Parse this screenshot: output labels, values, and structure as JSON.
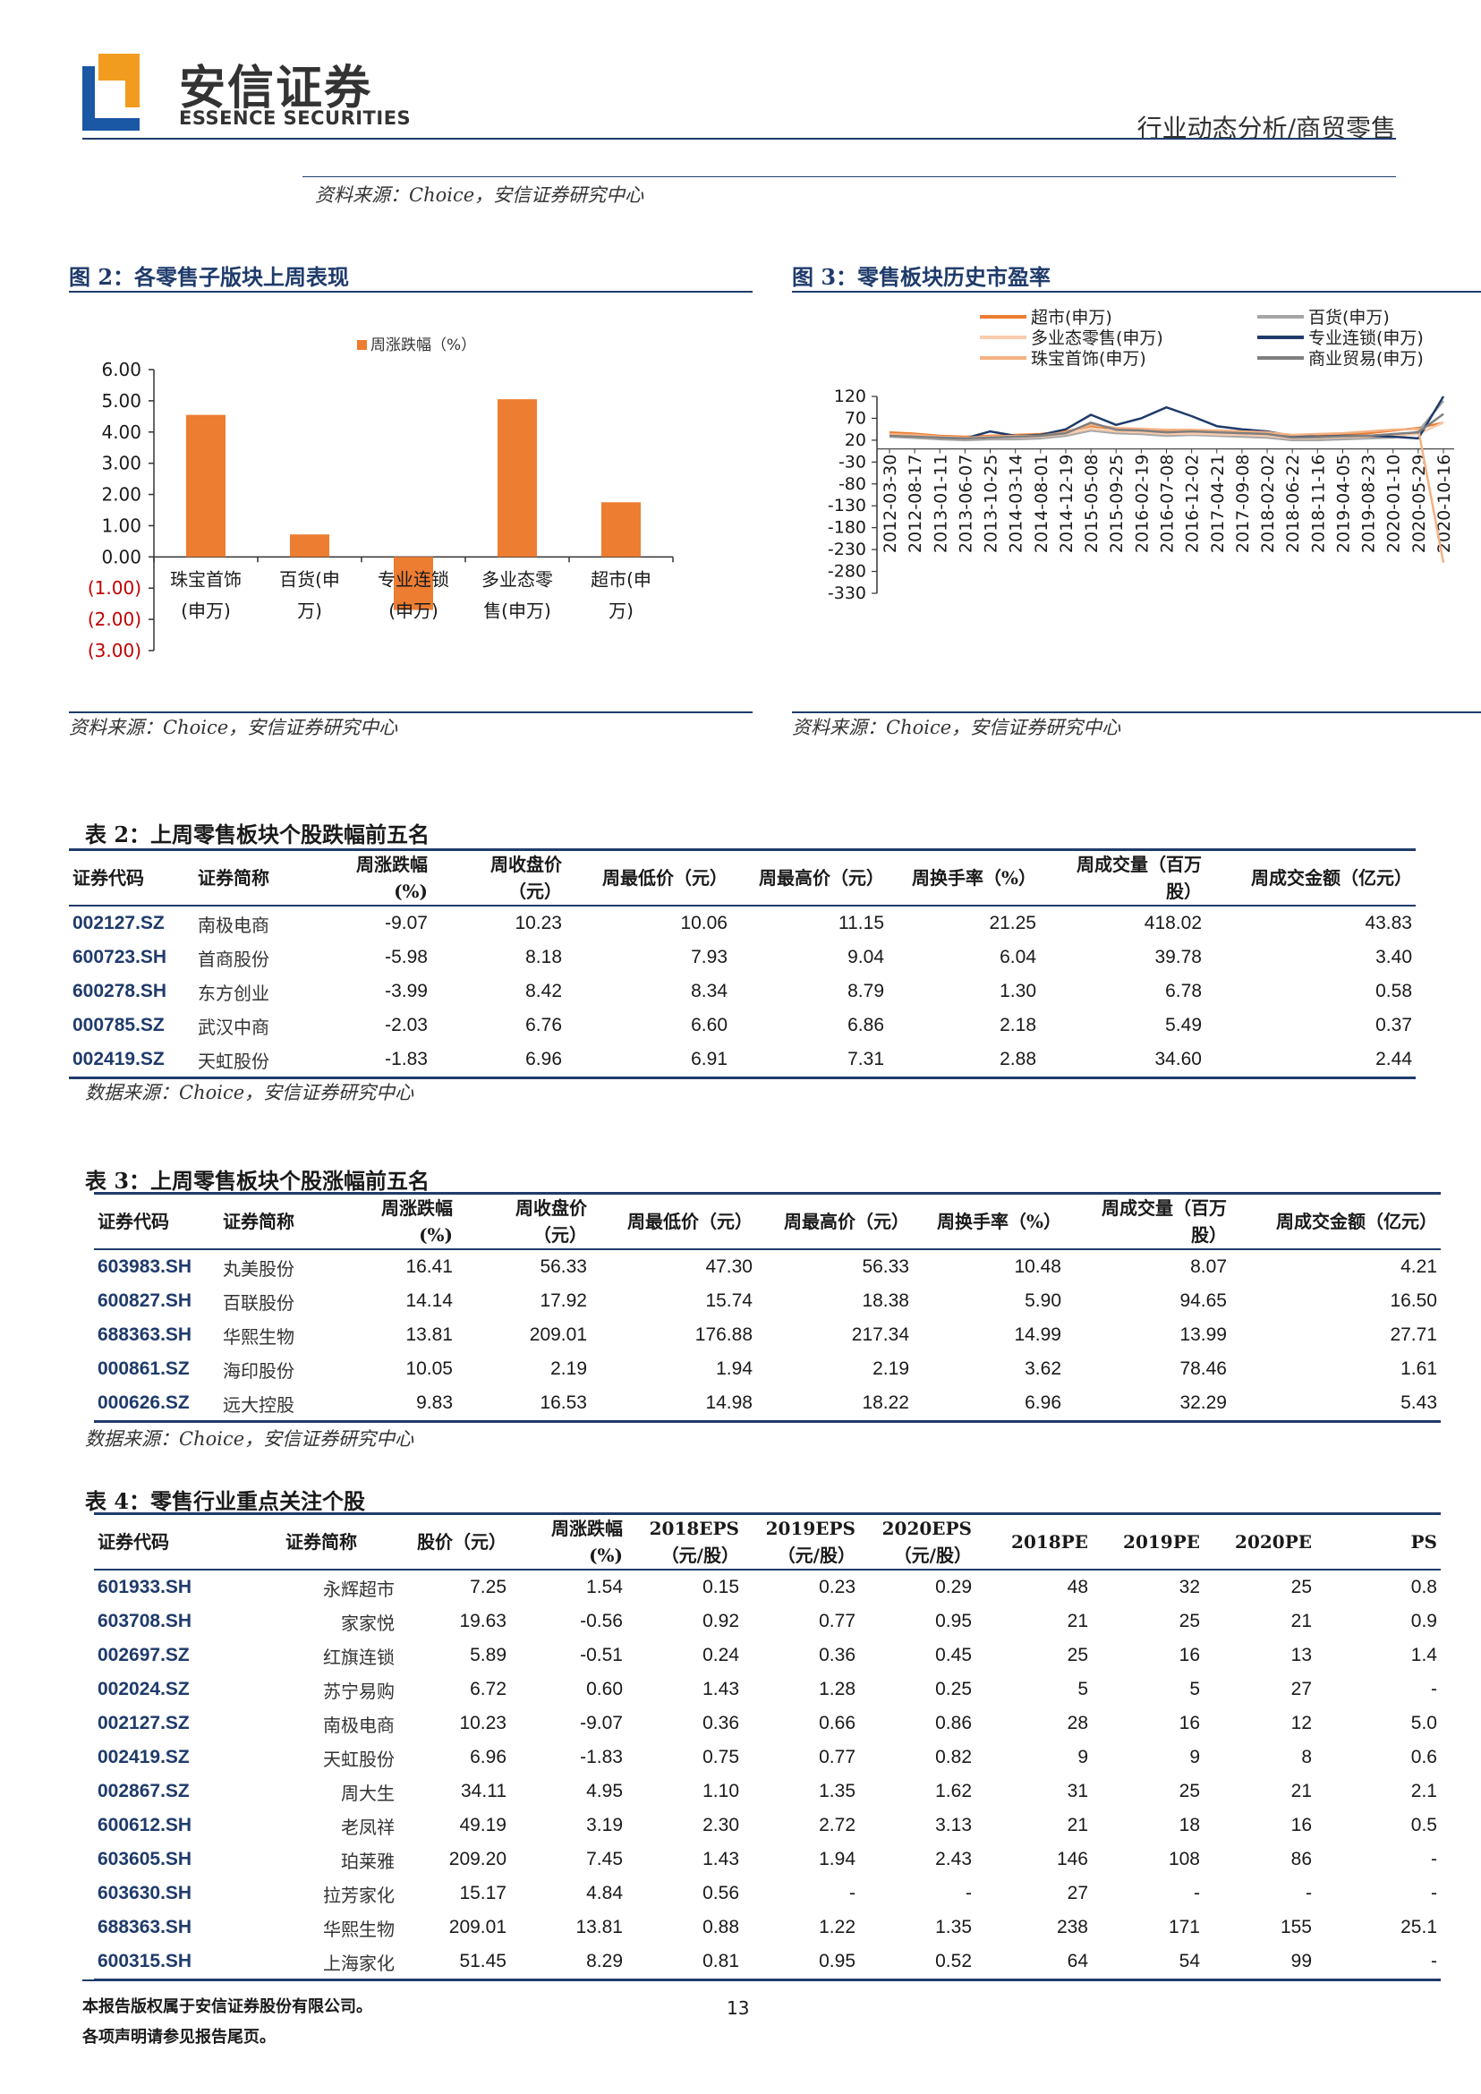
{
  "header": {
    "logo_cn": "安信证券",
    "logo_en": "ESSENCE SECURITIES",
    "category": "行业动态分析/商贸零售",
    "colors": {
      "navy": "#1f3b6b",
      "orange": "#ed7d31",
      "logo_blue": "#1a57a4",
      "logo_orange": "#f29c1f"
    }
  },
  "top_source": "资料来源：Choice，安信证券研究中心",
  "figure2": {
    "title": "图 2：各零售子版块上周表现",
    "source": "资料来源：Choice，安信证券研究中心",
    "chart_data": {
      "type": "bar",
      "legend": "周涨跌幅（%）",
      "legend_position": "top",
      "categories": [
        "珠宝首饰(申万)",
        "百货(申万)",
        "专业连锁(申万)",
        "多业态零售(申万)",
        "超市(申万)"
      ],
      "category_lines": [
        [
          "珠宝首饰",
          "(申万)"
        ],
        [
          "百货(申",
          "万)"
        ],
        [
          "专业连锁",
          "(申万)"
        ],
        [
          "多业态零",
          "售(申万)"
        ],
        [
          "超市(申",
          "万)"
        ]
      ],
      "values": [
        4.55,
        0.72,
        -1.7,
        5.05,
        1.75
      ],
      "ylim": [
        -3,
        6
      ],
      "ytick_labels": [
        "6.00",
        "5.00",
        "4.00",
        "3.00",
        "2.00",
        "1.00",
        "0.00",
        "(1.00)",
        "(2.00)",
        "(3.00)"
      ],
      "ytick_values": [
        6,
        5,
        4,
        3,
        2,
        1,
        0,
        -1,
        -2,
        -3
      ],
      "bar_color": "#ed7d31",
      "negative_label_color": "#c00000"
    }
  },
  "figure3": {
    "title": "图 3：零售板块历史市盈率",
    "source": "资料来源：Choice，安信证券研究中心",
    "chart_data": {
      "type": "line",
      "legend_position": "top",
      "ylim": [
        -330,
        120
      ],
      "ytick_labels": [
        "120",
        "70",
        "20",
        "-30",
        "-80",
        "-130",
        "-180",
        "-230",
        "-280",
        "-330"
      ],
      "ytick_values": [
        120,
        70,
        20,
        -30,
        -80,
        -130,
        -180,
        -230,
        -280,
        -330
      ],
      "xtick_labels": [
        "2012-03-30",
        "2012-08-17",
        "2013-01-11",
        "2013-06-07",
        "2013-10-25",
        "2014-03-14",
        "2014-08-01",
        "2014-12-19",
        "2015-05-08",
        "2015-09-25",
        "2016-02-19",
        "2016-07-08",
        "2016-12-02",
        "2017-04-21",
        "2017-09-08",
        "2018-02-02",
        "2018-06-22",
        "2018-11-16",
        "2019-04-05",
        "2019-08-23",
        "2020-01-10",
        "2020-05-29",
        "2020-10-16"
      ],
      "series": [
        {
          "name": "超市(申万)",
          "color": "#ed7d31",
          "values": [
            38,
            35,
            30,
            28,
            30,
            32,
            34,
            40,
            52,
            46,
            44,
            40,
            40,
            42,
            40,
            38,
            30,
            32,
            34,
            36,
            42,
            48,
            60
          ]
        },
        {
          "name": "百货(申万)",
          "color": "#a6a6a6",
          "values": [
            28,
            25,
            22,
            20,
            22,
            22,
            24,
            30,
            42,
            36,
            34,
            30,
            32,
            30,
            28,
            26,
            20,
            20,
            22,
            24,
            26,
            40,
            110
          ]
        },
        {
          "name": "多业态零售(申万)",
          "color": "#f8cbad",
          "values": [
            30,
            28,
            26,
            24,
            26,
            27,
            28,
            34,
            46,
            40,
            38,
            34,
            35,
            33,
            32,
            30,
            24,
            25,
            27,
            28,
            30,
            34,
            60
          ]
        },
        {
          "name": "专业连锁(申万)",
          "color": "#1f3b6b",
          "values": [
            32,
            30,
            26,
            24,
            40,
            30,
            32,
            45,
            78,
            55,
            70,
            95,
            75,
            52,
            45,
            40,
            30,
            28,
            30,
            30,
            28,
            24,
            120
          ]
        },
        {
          "name": "珠宝首饰(申万)",
          "color": "#f4b183",
          "values": [
            34,
            32,
            28,
            26,
            28,
            30,
            30,
            38,
            55,
            48,
            46,
            44,
            44,
            42,
            40,
            38,
            32,
            34,
            36,
            40,
            44,
            46,
            -260
          ]
        },
        {
          "name": "商业贸易(申万)",
          "color": "#7f7f7f",
          "values": [
            30,
            28,
            26,
            24,
            26,
            28,
            30,
            36,
            60,
            44,
            42,
            38,
            40,
            38,
            36,
            34,
            26,
            27,
            29,
            30,
            34,
            38,
            80
          ]
        }
      ]
    }
  },
  "table2": {
    "title": "表 2：上周零售板块个股跌幅前五名",
    "source": "数据来源：Choice，安信证券研究中心",
    "headers": [
      [
        "证券代码"
      ],
      [
        "证券简称"
      ],
      [
        "周涨跌幅",
        "(%)"
      ],
      [
        "周收盘价",
        "（元）"
      ],
      [
        "周最低价（元）"
      ],
      [
        "周最高价（元）"
      ],
      [
        "周换手率（%）"
      ],
      [
        "周成交量（百万",
        "股）"
      ],
      [
        "周成交金额（亿元）"
      ]
    ],
    "rows": [
      [
        "002127.SZ",
        "南极电商",
        "-9.07",
        "10.23",
        "10.06",
        "11.15",
        "21.25",
        "418.02",
        "43.83"
      ],
      [
        "600723.SH",
        "首商股份",
        "-5.98",
        "8.18",
        "7.93",
        "9.04",
        "6.04",
        "39.78",
        "3.40"
      ],
      [
        "600278.SH",
        "东方创业",
        "-3.99",
        "8.42",
        "8.34",
        "8.79",
        "1.30",
        "6.78",
        "0.58"
      ],
      [
        "000785.SZ",
        "武汉中商",
        "-2.03",
        "6.76",
        "6.60",
        "6.86",
        "2.18",
        "5.49",
        "0.37"
      ],
      [
        "002419.SZ",
        "天虹股份",
        "-1.83",
        "6.96",
        "6.91",
        "7.31",
        "2.88",
        "34.60",
        "2.44"
      ]
    ]
  },
  "table3": {
    "title": "表 3：上周零售板块个股涨幅前五名",
    "source": "数据来源：Choice，安信证券研究中心",
    "headers": [
      [
        "证券代码"
      ],
      [
        "证券简称"
      ],
      [
        "周涨跌幅",
        "(%)"
      ],
      [
        "周收盘价",
        "（元）"
      ],
      [
        "周最低价（元）"
      ],
      [
        "周最高价（元）"
      ],
      [
        "周换手率（%）"
      ],
      [
        "周成交量（百万",
        "股）"
      ],
      [
        "周成交金额（亿元）"
      ]
    ],
    "rows": [
      [
        "603983.SH",
        "丸美股份",
        "16.41",
        "56.33",
        "47.30",
        "56.33",
        "10.48",
        "8.07",
        "4.21"
      ],
      [
        "600827.SH",
        "百联股份",
        "14.14",
        "17.92",
        "15.74",
        "18.38",
        "5.90",
        "94.65",
        "16.50"
      ],
      [
        "688363.SH",
        "华熙生物",
        "13.81",
        "209.01",
        "176.88",
        "217.34",
        "14.99",
        "13.99",
        "27.71"
      ],
      [
        "000861.SZ",
        "海印股份",
        "10.05",
        "2.19",
        "1.94",
        "2.19",
        "3.62",
        "78.46",
        "1.61"
      ],
      [
        "000626.SZ",
        "远大控股",
        "9.83",
        "16.53",
        "14.98",
        "18.22",
        "6.96",
        "32.29",
        "5.43"
      ]
    ]
  },
  "table4": {
    "title": "表 4：零售行业重点关注个股",
    "headers": [
      [
        "证券代码"
      ],
      [
        "证券简称"
      ],
      [
        "股价（元）"
      ],
      [
        "周涨跌幅",
        "(%)"
      ],
      [
        "2018EPS",
        "（元/股）"
      ],
      [
        "2019EPS",
        "（元/股）"
      ],
      [
        "2020EPS",
        "（元/股）"
      ],
      [
        "2018PE"
      ],
      [
        "2019PE"
      ],
      [
        "2020PE"
      ],
      [
        "PS"
      ]
    ],
    "rows": [
      [
        "601933.SH",
        "永辉超市",
        "7.25",
        "1.54",
        "0.15",
        "0.23",
        "0.29",
        "48",
        "32",
        "25",
        "0.8"
      ],
      [
        "603708.SH",
        "家家悦",
        "19.63",
        "-0.56",
        "0.92",
        "0.77",
        "0.95",
        "21",
        "25",
        "21",
        "0.9"
      ],
      [
        "002697.SZ",
        "红旗连锁",
        "5.89",
        "-0.51",
        "0.24",
        "0.36",
        "0.45",
        "25",
        "16",
        "13",
        "1.4"
      ],
      [
        "002024.SZ",
        "苏宁易购",
        "6.72",
        "0.60",
        "1.43",
        "1.28",
        "0.25",
        "5",
        "5",
        "27",
        "-"
      ],
      [
        "002127.SZ",
        "南极电商",
        "10.23",
        "-9.07",
        "0.36",
        "0.66",
        "0.86",
        "28",
        "16",
        "12",
        "5.0"
      ],
      [
        "002419.SZ",
        "天虹股份",
        "6.96",
        "-1.83",
        "0.75",
        "0.77",
        "0.82",
        "9",
        "9",
        "8",
        "0.6"
      ],
      [
        "002867.SZ",
        "周大生",
        "34.11",
        "4.95",
        "1.10",
        "1.35",
        "1.62",
        "31",
        "25",
        "21",
        "2.1"
      ],
      [
        "600612.SH",
        "老凤祥",
        "49.19",
        "3.19",
        "2.30",
        "2.72",
        "3.13",
        "21",
        "18",
        "16",
        "0.5"
      ],
      [
        "603605.SH",
        "珀莱雅",
        "209.20",
        "7.45",
        "1.43",
        "1.94",
        "2.43",
        "146",
        "108",
        "86",
        "-"
      ],
      [
        "603630.SH",
        "拉芳家化",
        "15.17",
        "4.84",
        "0.56",
        "-",
        "-",
        "27",
        "-",
        "-",
        "-"
      ],
      [
        "688363.SH",
        "华熙生物",
        "209.01",
        "13.81",
        "0.88",
        "1.22",
        "1.35",
        "238",
        "171",
        "155",
        "25.1"
      ],
      [
        "600315.SH",
        "上海家化",
        "51.45",
        "8.29",
        "0.81",
        "0.95",
        "0.52",
        "64",
        "54",
        "99",
        "-"
      ]
    ]
  },
  "footer": {
    "line1": "本报告版权属于安信证券股份有限公司。",
    "line2": "各项声明请参见报告尾页。",
    "page_number": "13"
  }
}
